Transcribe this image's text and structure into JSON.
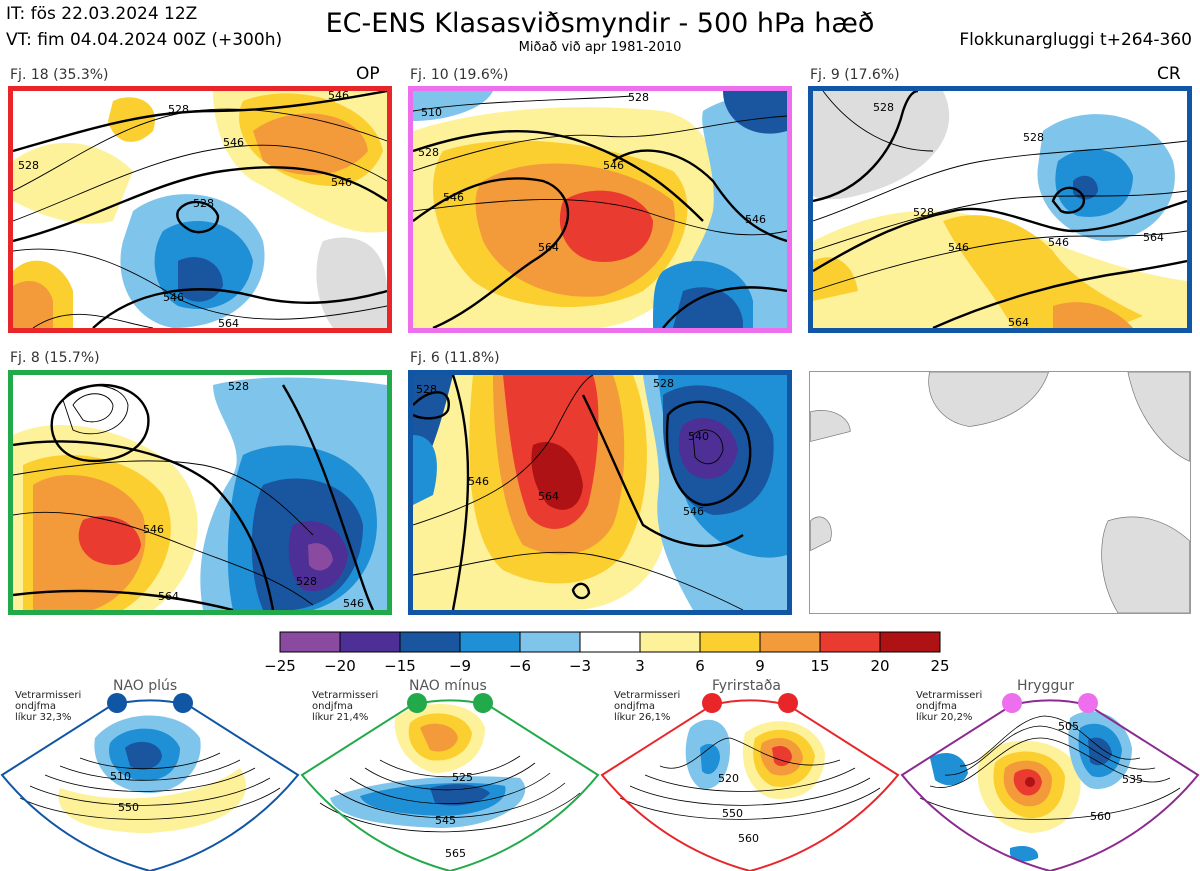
{
  "header": {
    "it": "IT: fös 22.03.2024 12Z",
    "vt": "VT: fim 04.04.2024 00Z  (+300h)",
    "title": "EC-ENS Klasasviðsmyndir - 500 hPa hæð",
    "subtitle": "Miðað við apr 1981-2010",
    "window": "Flokkunargluggi t+264-360"
  },
  "clusters": [
    {
      "label": "Fj. 18 (35.3%)",
      "tag": "OP",
      "members": 18,
      "percent": 35.3,
      "color": "#e8262a",
      "contour_labels": [
        "528",
        "528",
        "546",
        "546",
        "528",
        "546",
        "546",
        "564"
      ]
    },
    {
      "label": "Fj. 10 (19.6%)",
      "tag": "",
      "members": 10,
      "percent": 19.6,
      "color": "#ee6fee",
      "contour_labels": [
        "510",
        "528",
        "546",
        "564",
        "546",
        "546",
        "528"
      ]
    },
    {
      "label": "Fj. 9 (17.6%)",
      "tag": "CR",
      "members": 9,
      "percent": 17.6,
      "color": "#1155a5",
      "contour_labels": [
        "528",
        "528",
        "546",
        "528",
        "546",
        "564",
        "564"
      ]
    },
    {
      "label": "Fj. 8 (15.7%)",
      "tag": "",
      "members": 8,
      "percent": 15.7,
      "color": "#22aa4a",
      "contour_labels": [
        "546",
        "564",
        "528",
        "528",
        "546"
      ]
    },
    {
      "label": "Fj. 6 (11.8%)",
      "tag": "",
      "members": 6,
      "percent": 11.8,
      "color": "#1155a5",
      "contour_labels": [
        "528",
        "546",
        "564",
        "540",
        "546",
        "528"
      ]
    }
  ],
  "colorbar": {
    "ticks": [
      "−25",
      "−20",
      "−15",
      "−9",
      "−6",
      "−3",
      "3",
      "6",
      "9",
      "15",
      "20",
      "25"
    ],
    "colors": [
      "#8a4aa0",
      "#4e2f96",
      "#1a55a0",
      "#1f8fd6",
      "#7fc4eb",
      "#ffffff",
      "#fdf29a",
      "#fbcf30",
      "#f39a3a",
      "#ea3b30",
      "#ae1214"
    ]
  },
  "regimes": [
    {
      "name": "NAO plús",
      "note": [
        "Vetrarmisseri",
        "ondjfma",
        "líkur 32,3%"
      ],
      "probability": 32.3,
      "dot_color": "#1155a5",
      "frame_color": "#1155a5",
      "iso_labels": [
        "510",
        "550"
      ]
    },
    {
      "name": "NAO mínus",
      "note": [
        "Vetrarmisseri",
        "ondjfma",
        "líkur 21,4%"
      ],
      "probability": 21.4,
      "dot_color": "#22aa4a",
      "frame_color": "#22aa4a",
      "iso_labels": [
        "525",
        "545",
        "565"
      ]
    },
    {
      "name": "Fyrirstaða",
      "note": [
        "Vetrarmisseri",
        "ondjfma",
        "líkur 26,1%"
      ],
      "probability": 26.1,
      "dot_color": "#e8262a",
      "frame_color": "#e8262a",
      "iso_labels": [
        "520",
        "550",
        "560"
      ]
    },
    {
      "name": "Hryggur",
      "note": [
        "Vetrarmisseri",
        "ondjfma",
        "líkur 20,2%"
      ],
      "probability": 20.2,
      "dot_color": "#ee6fee",
      "frame_color": "#8b2a8f",
      "iso_labels": [
        "505",
        "535",
        "560"
      ]
    }
  ],
  "chart_data": {
    "type": "heatmap",
    "title": "EC-ENS Klasasviðsmyndir - 500 hPa hæð",
    "variable": "500 hPa geopotential height anomaly",
    "color_levels": [
      -25,
      -20,
      -15,
      -9,
      -6,
      -3,
      3,
      6,
      9,
      15,
      20,
      25
    ],
    "clusters": [
      {
        "name": "Fj. 18",
        "members": 18,
        "percent": 35.3
      },
      {
        "name": "Fj. 10",
        "members": 10,
        "percent": 19.6
      },
      {
        "name": "Fj. 9",
        "members": 9,
        "percent": 17.6
      },
      {
        "name": "Fj. 8",
        "members": 8,
        "percent": 15.7
      },
      {
        "name": "Fj. 6",
        "members": 6,
        "percent": 11.8
      }
    ],
    "regime_probabilities": [
      {
        "name": "NAO plús",
        "value": 32.3
      },
      {
        "name": "NAO mínus",
        "value": 21.4
      },
      {
        "name": "Fyrirstaða",
        "value": 26.1
      },
      {
        "name": "Hryggur",
        "value": 20.2
      }
    ]
  }
}
